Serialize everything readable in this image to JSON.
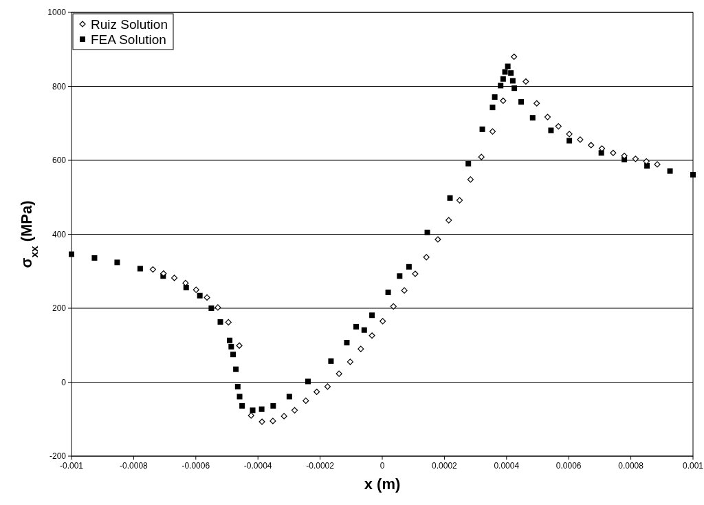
{
  "chart_data": {
    "type": "scatter",
    "xlabel": "x (m)",
    "ylabel": "σ$_{xx}$ (MPa)",
    "xlim": [
      -0.001,
      0.001
    ],
    "xticks": [
      -0.001,
      -0.0008,
      -0.0006,
      -0.0004,
      -0.0002,
      0,
      0.0002,
      0.0004,
      0.0006,
      0.0008,
      0.001
    ],
    "ylim": [
      -200,
      1000
    ],
    "yticks": [
      -200,
      0,
      200,
      400,
      600,
      800,
      1000
    ],
    "grid": "y",
    "legend": "top left",
    "series": [
      {
        "name": "Ruiz Solution",
        "color": "#000000",
        "marker": "diamond",
        "x": [
          -0.000738,
          -0.000704,
          -0.000669,
          -0.000633,
          -0.000599,
          -0.000564,
          -0.000529,
          -0.000495,
          -0.00046,
          -0.000422,
          -0.000387,
          -0.000352,
          -0.000316,
          -0.000282,
          -0.000246,
          -0.000211,
          -0.000176,
          -0.000139,
          -0.000103,
          -6.9e-05,
          -3.3e-05,
          1.5e-06,
          3.6e-05,
          7.1e-05,
          0.000106,
          0.000142,
          0.000179,
          0.000214,
          0.000249,
          0.000284,
          0.000319,
          0.000355,
          0.000389,
          0.000424,
          0.000462,
          0.000497,
          0.000532,
          0.000567,
          0.000602,
          0.000637,
          0.000672,
          0.000707,
          0.000743,
          0.000779,
          0.000815,
          0.00085,
          0.000885
        ],
        "values": [
          305,
          294,
          282,
          268,
          250,
          229,
          202,
          162,
          99,
          -90,
          -107,
          -105,
          -92,
          -76,
          -50,
          -26,
          -12,
          23,
          55,
          90,
          126,
          165,
          205,
          248,
          293,
          338,
          386,
          438,
          492,
          548,
          609,
          678,
          761,
          880,
          813,
          754,
          717,
          692,
          671,
          656,
          641,
          632,
          620,
          612,
          604,
          597,
          589
        ]
      },
      {
        "name": "FEA Solution",
        "color": "#000000",
        "marker": "square",
        "x": [
          -0.001,
          -0.000926,
          -0.000853,
          -0.000779,
          -0.000705,
          -0.000631,
          -0.000587,
          -0.00055,
          -0.000521,
          -0.000491,
          -0.000486,
          -0.00048,
          -0.000471,
          -0.000465,
          -0.000459,
          -0.000451,
          -0.000417,
          -0.000388,
          -0.000351,
          -0.000299,
          -0.000239,
          -0.000165,
          -0.000114,
          -8.4e-05,
          -5.8e-05,
          -3.3e-05,
          1.9e-05,
          5.6e-05,
          8.6e-05,
          0.000145,
          0.000218,
          0.000277,
          0.000322,
          0.000355,
          0.000362,
          0.000381,
          0.000389,
          0.000395,
          0.000404,
          0.000414,
          0.00042,
          0.000425,
          0.000447,
          0.000484,
          0.000543,
          0.000602,
          0.000705,
          0.000779,
          0.000852,
          0.000926,
          0.001
        ],
        "values": [
          346,
          336,
          324,
          307,
          287,
          256,
          234,
          200,
          163,
          113,
          96,
          75,
          35,
          -12,
          -39,
          -64,
          -76,
          -73,
          -64,
          -39,
          2,
          57,
          107,
          150,
          141,
          181,
          243,
          287,
          312,
          405,
          498,
          591,
          684,
          743,
          771,
          802,
          820,
          839,
          854,
          836,
          815,
          795,
          758,
          715,
          681,
          653,
          620,
          602,
          585,
          571,
          561
        ]
      }
    ]
  }
}
